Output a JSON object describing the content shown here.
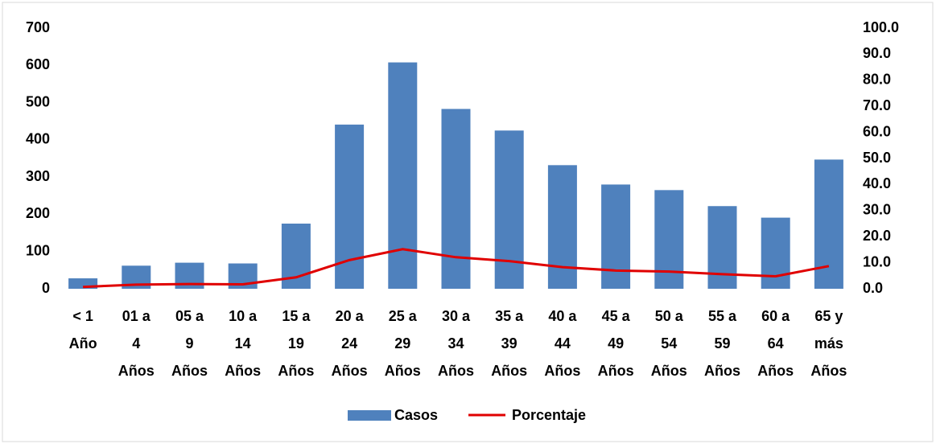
{
  "chart_data": {
    "type": "bar-line",
    "categories": [
      "< 1 Año",
      "01 a 4 Años",
      "05 a 9 Años",
      "10 a 14 Años",
      "15 a 19 Años",
      "20 a 24 Años",
      "25 a 29 Años",
      "30 a 34 Años",
      "35 a 39 Años",
      "40 a 44 Años",
      "45 a 49 Años",
      "50 a 54 Años",
      "55 a 59 Años",
      "60 a 64 Años",
      "65 y más Años"
    ],
    "series": [
      {
        "name": "Casos",
        "type": "bar",
        "color": "#4f81bd",
        "values": [
          28,
          62,
          70,
          68,
          175,
          441,
          608,
          483,
          425,
          332,
          280,
          265,
          222,
          191,
          347
        ]
      },
      {
        "name": "Porcentaje",
        "type": "line",
        "axis": "y2",
        "color": "#e00000",
        "values": [
          0.7,
          1.6,
          1.8,
          1.7,
          4.4,
          11.0,
          15.2,
          12.1,
          10.6,
          8.3,
          7.0,
          6.6,
          5.6,
          4.8,
          8.7
        ]
      }
    ],
    "ylim": [
      0,
      700
    ],
    "yticks": [
      0,
      100,
      200,
      300,
      400,
      500,
      600,
      700
    ],
    "y2lim": [
      0,
      100
    ],
    "y2ticks": [
      {
        "value": 0,
        "label": "0.0"
      },
      {
        "value": 10,
        "label": "10.0"
      },
      {
        "value": 20,
        "label": "20.0"
      },
      {
        "value": 30,
        "label": "30.0"
      },
      {
        "value": 40,
        "label": "40.0"
      },
      {
        "value": 50,
        "label": "50.0"
      },
      {
        "value": 60,
        "label": "60.0"
      },
      {
        "value": 70,
        "label": "70.0"
      },
      {
        "value": 80,
        "label": "80.0"
      },
      {
        "value": 90,
        "label": "90.0"
      },
      {
        "value": 100,
        "label": "100.0"
      }
    ],
    "grid": false,
    "legend": "bottom"
  }
}
